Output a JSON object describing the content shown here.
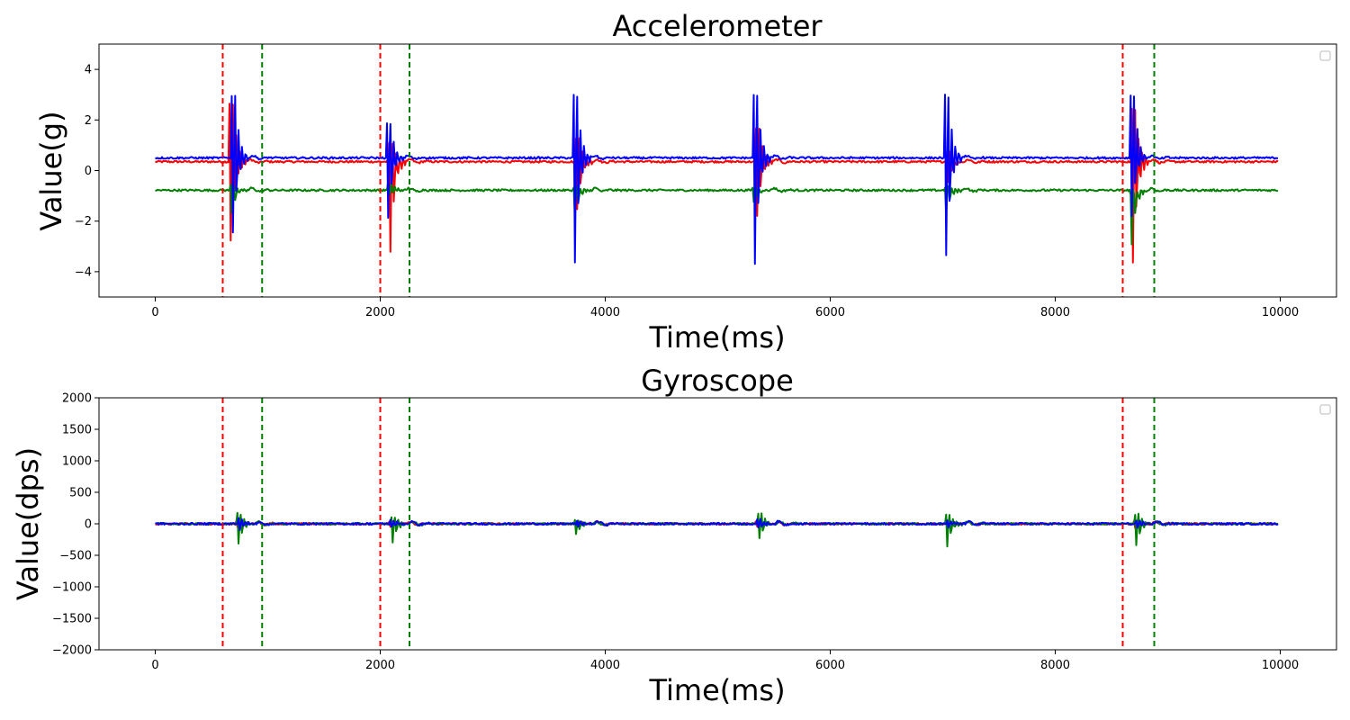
{
  "chart_data": [
    {
      "type": "line",
      "title": "Accelerometer",
      "xlabel": "Time(ms)",
      "ylabel": "Value(g)",
      "xlim": [
        -500,
        10500
      ],
      "ylim": [
        -5,
        5
      ],
      "x_ticks": [
        0,
        2000,
        4000,
        6000,
        8000,
        10000
      ],
      "x_tick_labels": [
        "0",
        "2000",
        "4000",
        "6000",
        "8000",
        "10000"
      ],
      "y_ticks": [
        -4,
        -2,
        0,
        2,
        4
      ],
      "y_tick_labels": [
        "−4",
        "−2",
        "0",
        "2",
        "4"
      ],
      "grid": false,
      "legend": "top-right (empty)",
      "vlines": [
        {
          "x": 600,
          "color": "#ff0000",
          "style": "dashed"
        },
        {
          "x": 950,
          "color": "#008000",
          "style": "dashed"
        },
        {
          "x": 2000,
          "color": "#ff0000",
          "style": "dashed"
        },
        {
          "x": 2260,
          "color": "#008000",
          "style": "dashed"
        },
        {
          "x": 8600,
          "color": "#ff0000",
          "style": "dashed"
        },
        {
          "x": 8880,
          "color": "#008000",
          "style": "dashed"
        }
      ],
      "series": [
        {
          "color": "#ff0000",
          "baseline": 0.35,
          "events": [
            [
              680,
              3.6,
              -3.0
            ],
            [
              2100,
              1.4,
              -3.5
            ],
            [
              3760,
              1.7,
              -1.7
            ],
            [
              5360,
              2.2,
              -2.0
            ],
            [
              7060,
              0.9,
              -0.5
            ],
            [
              8700,
              3.3,
              -4.0
            ]
          ]
        },
        {
          "color": "#008000",
          "baseline": -0.78,
          "events": [
            [
              690,
              -0.5,
              -1.7
            ],
            [
              2090,
              -0.3,
              -1.0
            ],
            [
              3740,
              -0.6,
              -2.0
            ],
            [
              5330,
              -0.6,
              -1.3
            ],
            [
              7040,
              -0.6,
              -1.8
            ],
            [
              8690,
              -1.0,
              -3.1
            ]
          ]
        },
        {
          "color": "#0000ff",
          "baseline": 0.5,
          "events": [
            [
              700,
              4.0,
              -2.7
            ],
            [
              2080,
              2.4,
              -2.1
            ],
            [
              3740,
              4.0,
              -4.0
            ],
            [
              5340,
              4.0,
              -4.0
            ],
            [
              7040,
              4.0,
              -3.7
            ],
            [
              8690,
              4.0,
              -2.0
            ]
          ]
        }
      ]
    },
    {
      "type": "line",
      "title": "Gyroscope",
      "xlabel": "Time(ms)",
      "ylabel": "Value(dps)",
      "xlim": [
        -500,
        10500
      ],
      "ylim": [
        -2000,
        2000
      ],
      "x_ticks": [
        0,
        2000,
        4000,
        6000,
        8000,
        10000
      ],
      "x_tick_labels": [
        "0",
        "2000",
        "4000",
        "6000",
        "8000",
        "10000"
      ],
      "y_ticks": [
        -2000,
        -1500,
        -1000,
        -500,
        0,
        500,
        1000,
        1500,
        2000
      ],
      "y_tick_labels": [
        "−2000",
        "−1500",
        "−1000",
        "−500",
        "0",
        "500",
        "1000",
        "1500",
        "2000"
      ],
      "grid": false,
      "legend": "top-right (empty)",
      "vlines": [
        {
          "x": 600,
          "color": "#ff0000",
          "style": "dashed"
        },
        {
          "x": 950,
          "color": "#008000",
          "style": "dashed"
        },
        {
          "x": 2000,
          "color": "#ff0000",
          "style": "dashed"
        },
        {
          "x": 2260,
          "color": "#008000",
          "style": "dashed"
        },
        {
          "x": 8600,
          "color": "#ff0000",
          "style": "dashed"
        },
        {
          "x": 8880,
          "color": "#008000",
          "style": "dashed"
        }
      ],
      "series": [
        {
          "color": "#ff0000",
          "baseline": 0,
          "events": [
            [
              740,
              80,
              -60
            ],
            [
              2100,
              60,
              -40
            ],
            [
              3760,
              50,
              -40
            ],
            [
              5360,
              70,
              -60
            ],
            [
              7060,
              60,
              -50
            ],
            [
              8720,
              70,
              -60
            ]
          ]
        },
        {
          "color": "#008000",
          "baseline": 0,
          "events": [
            [
              750,
              230,
              -330
            ],
            [
              2120,
              160,
              -320
            ],
            [
              3750,
              90,
              -180
            ],
            [
              5380,
              230,
              -260
            ],
            [
              7050,
              200,
              -390
            ],
            [
              8730,
              210,
              -370
            ]
          ]
        },
        {
          "color": "#0000ff",
          "baseline": 0,
          "events": [
            [
              760,
              110,
              -90
            ],
            [
              2110,
              80,
              -60
            ],
            [
              3770,
              50,
              -40
            ],
            [
              5370,
              90,
              -80
            ],
            [
              7060,
              70,
              -60
            ],
            [
              8740,
              80,
              -70
            ]
          ]
        }
      ]
    }
  ]
}
